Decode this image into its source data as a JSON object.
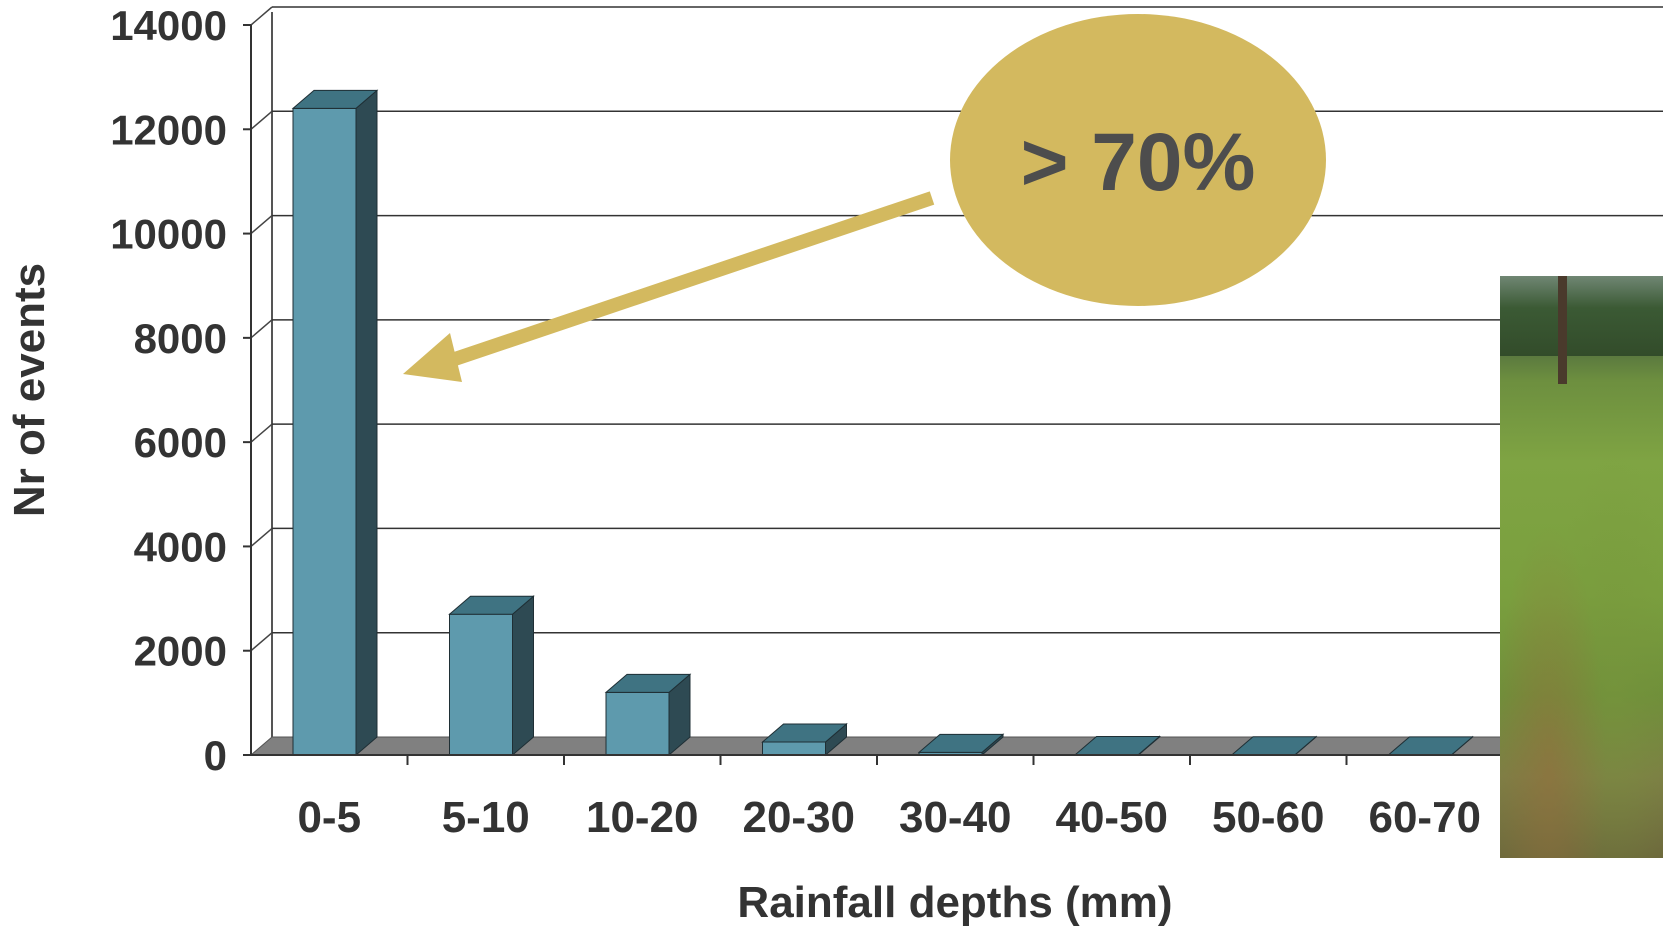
{
  "chart_data": {
    "type": "bar",
    "categories": [
      "0-5",
      "5-10",
      "10-20",
      "20-30",
      "30-40",
      "40-50",
      "50-60",
      "60-70"
    ],
    "values": [
      12400,
      2700,
      1200,
      250,
      50,
      10,
      5,
      3
    ],
    "xlabel": "Rainfall depths (mm)",
    "ylabel": "Nr of events",
    "ylim": [
      0,
      14000
    ],
    "yticks": [
      0,
      2000,
      4000,
      6000,
      8000,
      10000,
      12000,
      14000
    ],
    "grid": true,
    "style": "3d-bar",
    "colors": {
      "bar_front": "#5e9aad",
      "bar_side": "#2e4a53",
      "bar_top": "#3f7382",
      "floor": "#808080"
    }
  },
  "annotation": {
    "text": "> 70%",
    "color": "#d3b95f",
    "text_color": "#4d4d4d"
  },
  "photo": {
    "description_icon": "rain-garden-photo"
  }
}
